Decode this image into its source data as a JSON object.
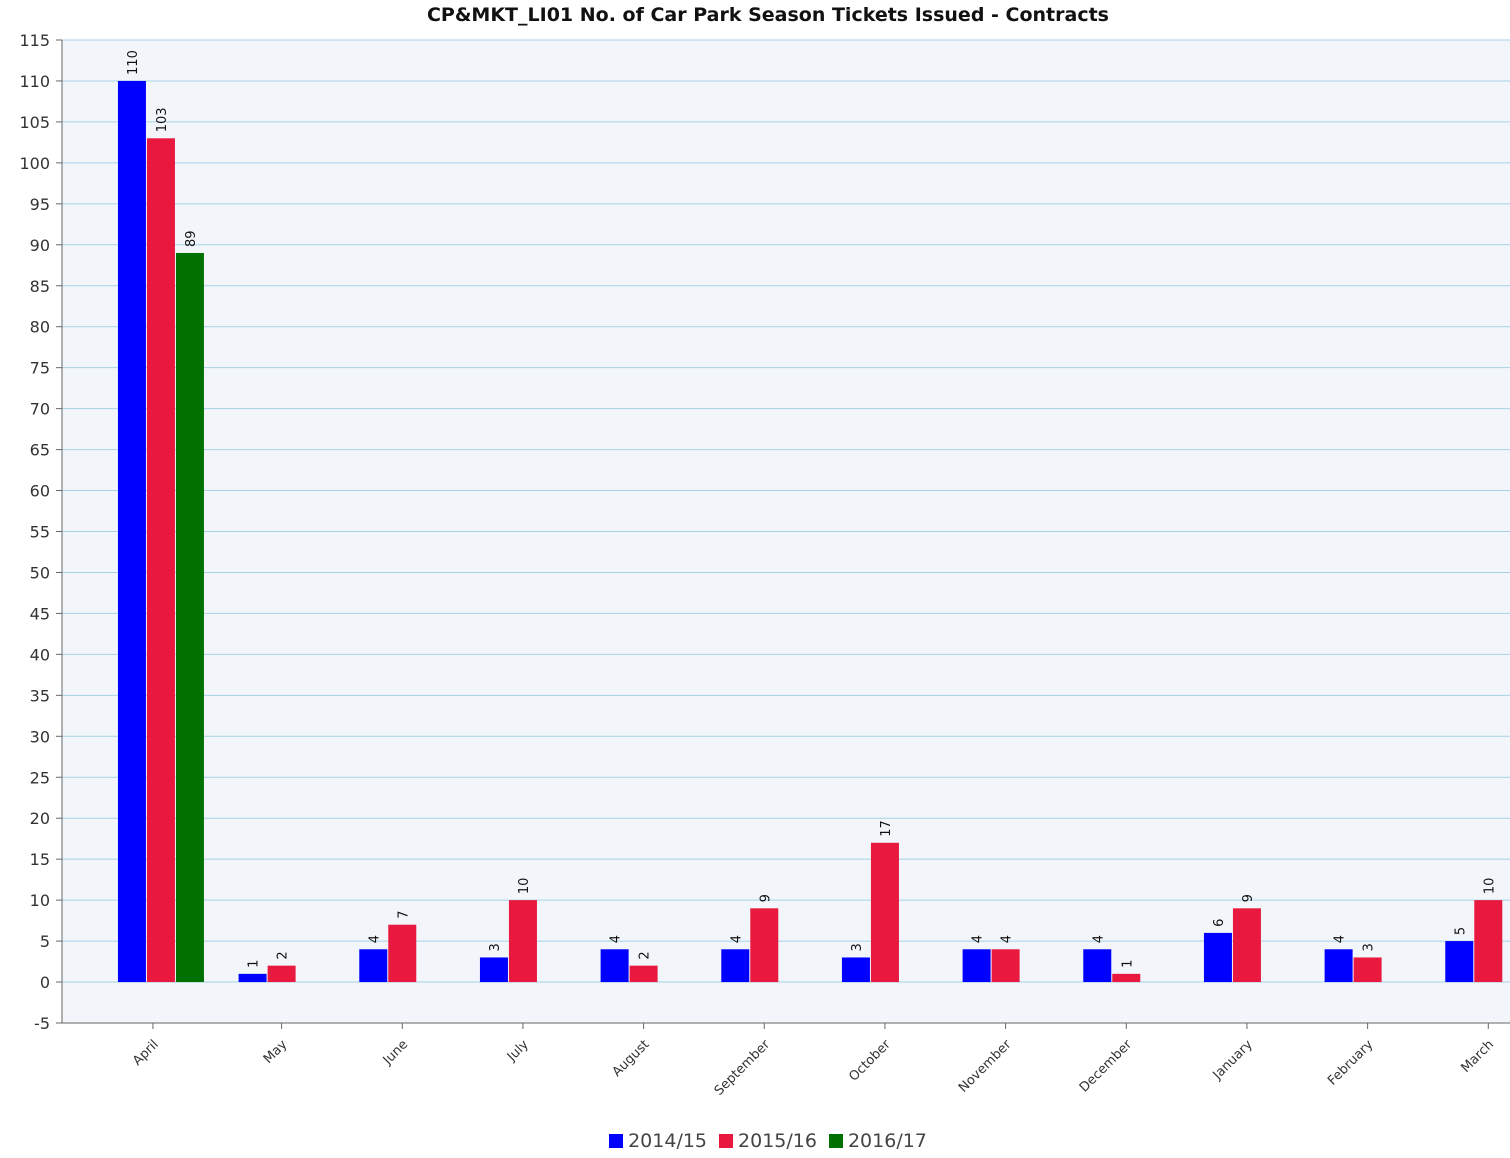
{
  "chart_data": {
    "type": "bar",
    "title": "CP&MKT_LI01 No. of Car Park Season Tickets Issued - Contracts",
    "xlabel": "",
    "ylabel": "",
    "ylim": [
      -5,
      115
    ],
    "yticks": [
      115,
      110,
      105,
      100,
      95,
      90,
      85,
      80,
      75,
      70,
      65,
      60,
      55,
      50,
      45,
      40,
      35,
      30,
      25,
      20,
      15,
      10,
      5,
      0,
      -5
    ],
    "categories": [
      "April",
      "May",
      "June",
      "July",
      "August",
      "September",
      "October",
      "November",
      "December",
      "January",
      "February",
      "March"
    ],
    "series": [
      {
        "name": "2014/15",
        "color": "#0000ff",
        "values": [
          110,
          1,
          4,
          3,
          4,
          4,
          3,
          4,
          4,
          6,
          4,
          5
        ]
      },
      {
        "name": "2015/16",
        "color": "#e8183f",
        "values": [
          103,
          2,
          7,
          10,
          2,
          9,
          17,
          4,
          1,
          9,
          3,
          10
        ]
      },
      {
        "name": "2016/17",
        "color": "#007000",
        "values": [
          89,
          null,
          null,
          null,
          null,
          null,
          null,
          null,
          null,
          null,
          null,
          null
        ]
      }
    ],
    "grid": true,
    "legend": "bottom"
  }
}
